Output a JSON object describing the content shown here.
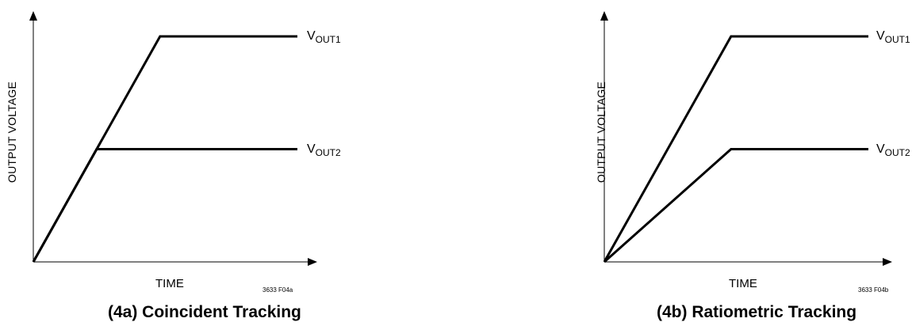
{
  "chart_data": [
    {
      "type": "line",
      "title": "(4a) Coincident Tracking",
      "xlabel": "TIME",
      "ylabel": "OUTPUT VOLTAGE",
      "figure_code": "3633 F04a",
      "xlim": [
        0,
        1
      ],
      "ylim": [
        0,
        1
      ],
      "grid": false,
      "series": [
        {
          "label_main": "V",
          "label_sub": "OUT1",
          "x": [
            0,
            0.48,
            1.0
          ],
          "y": [
            0,
            1.0,
            1.0
          ]
        },
        {
          "label_main": "V",
          "label_sub": "OUT2",
          "x": [
            0,
            0.24,
            1.0
          ],
          "y": [
            0,
            0.5,
            0.5
          ]
        }
      ]
    },
    {
      "type": "line",
      "title": "(4b) Ratiometric Tracking",
      "xlabel": "TIME",
      "ylabel": "OUTPUT VOLTAGE",
      "figure_code": "3633 F04b",
      "xlim": [
        0,
        1
      ],
      "ylim": [
        0,
        1
      ],
      "grid": false,
      "series": [
        {
          "label_main": "V",
          "label_sub": "OUT1",
          "x": [
            0,
            0.48,
            1.0
          ],
          "y": [
            0,
            1.0,
            1.0
          ]
        },
        {
          "label_main": "V",
          "label_sub": "OUT2",
          "x": [
            0,
            0.48,
            1.0
          ],
          "y": [
            0,
            0.5,
            0.5
          ]
        }
      ]
    }
  ]
}
